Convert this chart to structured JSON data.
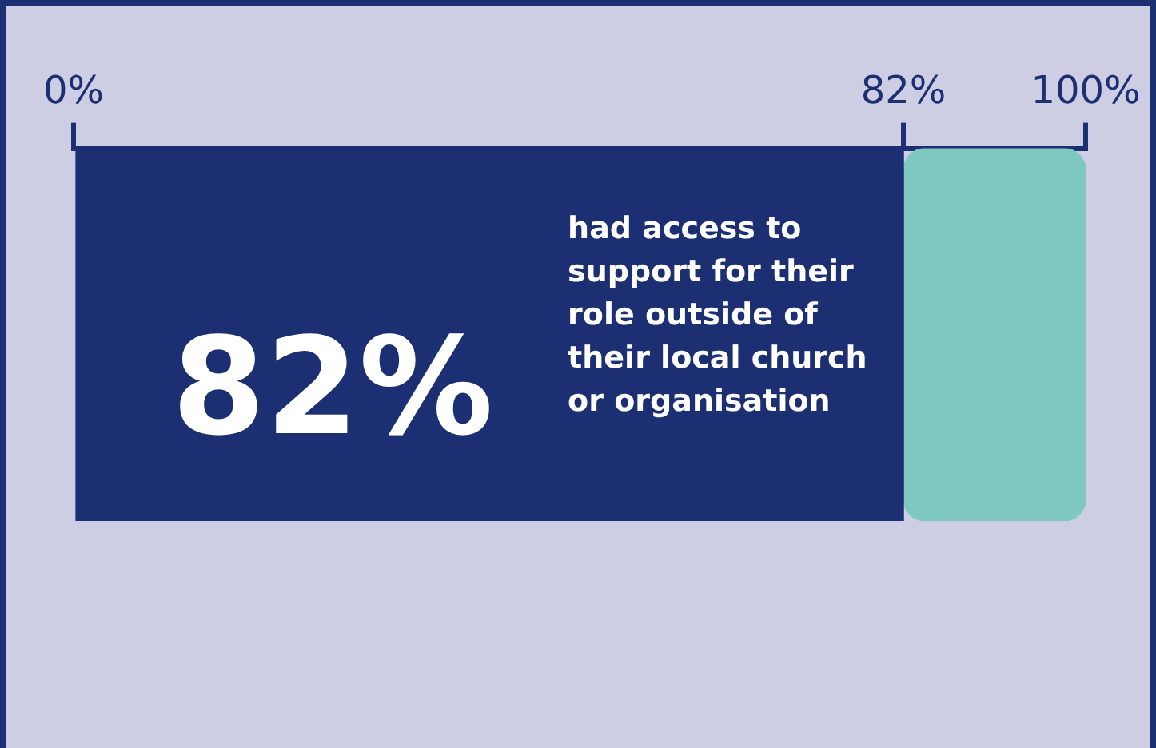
{
  "chart_data": {
    "type": "bar",
    "orientation": "horizontal",
    "stacked": true,
    "categories": [
      null
    ],
    "series": [
      {
        "color": "#1c2f73",
        "values": [
          82
        ],
        "value_labels": [
          "82%"
        ]
      },
      {
        "color": "#7ec8bf",
        "values": [
          18
        ],
        "value_labels": [
          null
        ]
      }
    ],
    "xlim": [
      0,
      100
    ],
    "xticks": [
      {
        "value": 0,
        "label": "0%"
      },
      {
        "value": 82,
        "label": "82%"
      },
      {
        "value": 100,
        "label": "100%"
      }
    ],
    "tick_labels": "x",
    "grid": false,
    "legend": false,
    "annotations": [
      "had access to support for their role outside of their local church or organisation"
    ]
  }
}
